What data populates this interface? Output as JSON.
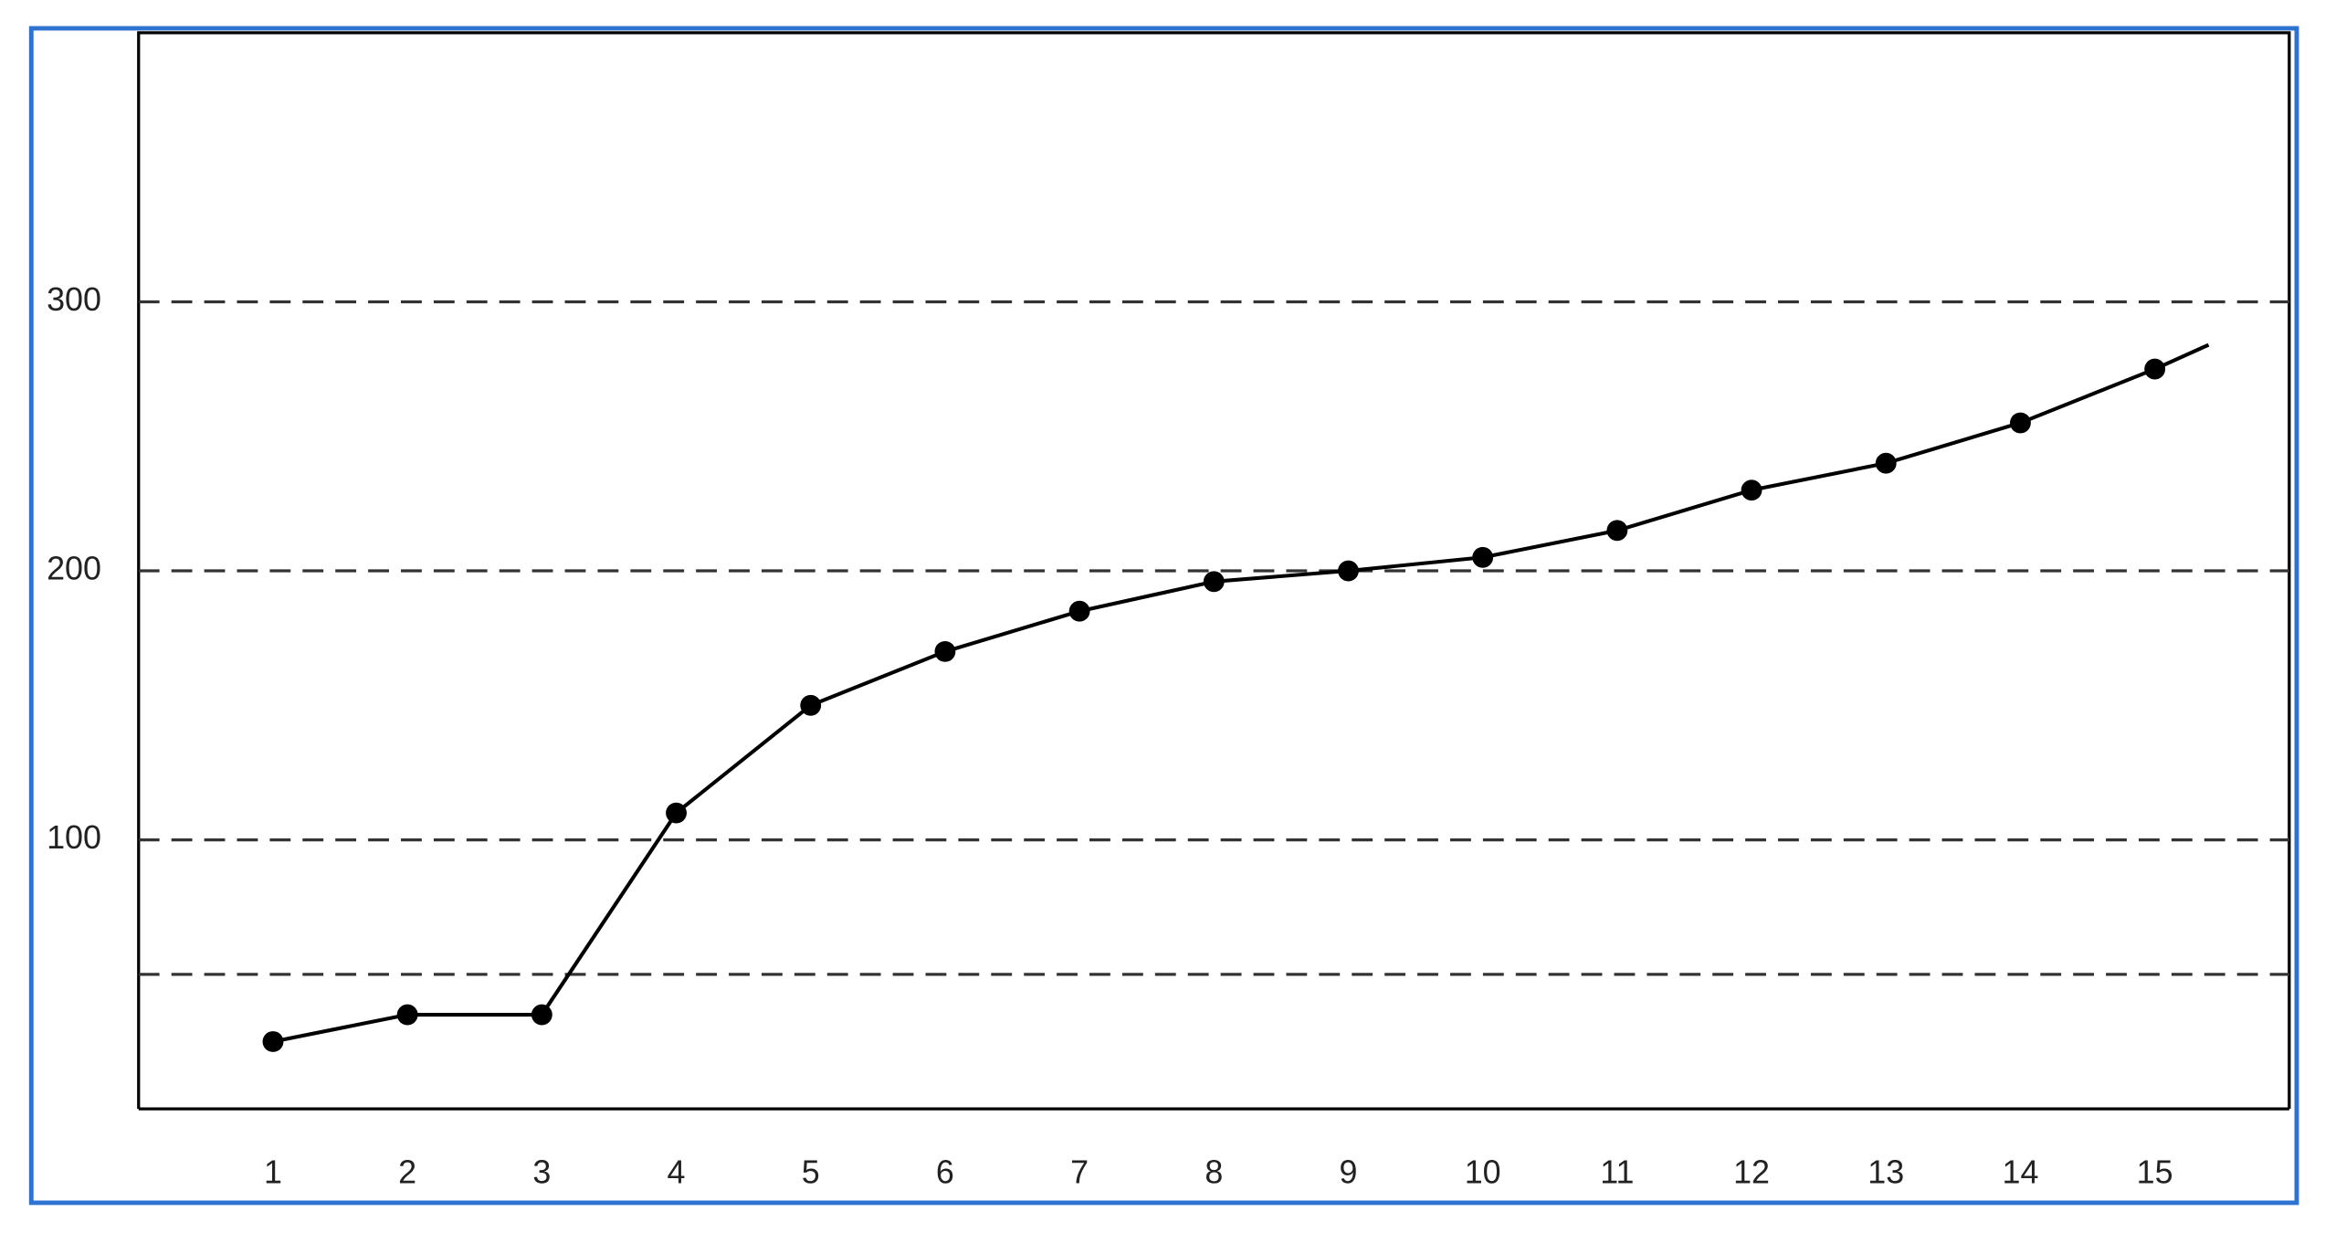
{
  "chart_data": {
    "type": "line",
    "x": [
      1,
      2,
      3,
      4,
      5,
      6,
      7,
      8,
      9,
      10,
      11,
      12,
      13,
      14,
      15,
      15.4
    ],
    "series": [
      {
        "color": "#000000",
        "values": [
          25,
          35,
          35,
          110,
          150,
          170,
          185,
          196,
          200,
          205,
          215,
          230,
          240,
          255,
          275,
          284
        ]
      }
    ],
    "xlim": [
      0,
      16
    ],
    "xticks": [
      1,
      2,
      3,
      4,
      5,
      6,
      7,
      8,
      9,
      10,
      11,
      12,
      13,
      14,
      15
    ],
    "ylim": [
      0,
      400
    ],
    "yticks": [
      100,
      200,
      300
    ],
    "grid_lines": [
      50,
      100,
      200,
      300
    ],
    "grid": true,
    "grid_style": "dashed"
  }
}
